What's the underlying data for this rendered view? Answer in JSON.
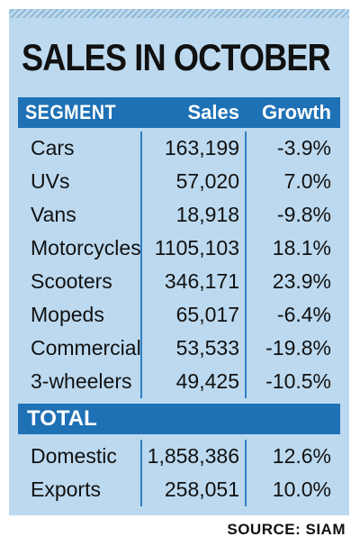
{
  "title": "SALES IN OCTOBER",
  "headers": {
    "segment": "SEGMENT",
    "sales": "Sales",
    "growth": "Growth"
  },
  "rows": [
    {
      "segment": "Cars",
      "sales": "163,199",
      "growth": "-3.9%"
    },
    {
      "segment": "UVs",
      "sales": "57,020",
      "growth": "7.0%"
    },
    {
      "segment": "Vans",
      "sales": "18,918",
      "growth": "-9.8%"
    },
    {
      "segment": "Motorcycles",
      "sales": "1105,103",
      "growth": "18.1%"
    },
    {
      "segment": "Scooters",
      "sales": "346,171",
      "growth": "23.9%"
    },
    {
      "segment": "Mopeds",
      "sales": "65,017",
      "growth": "-6.4%"
    },
    {
      "segment": "Commercial",
      "sales": "53,533",
      "growth": "-19.8%"
    },
    {
      "segment": "3-wheelers",
      "sales": "49,425",
      "growth": "-10.5%"
    }
  ],
  "total_label": "TOTAL",
  "total_rows": [
    {
      "segment": "Domestic",
      "sales": "1,858,386",
      "growth": "12.6%"
    },
    {
      "segment": "Exports",
      "sales": "258,051",
      "growth": "10.0%"
    }
  ],
  "source": "SOURCE: SIAM",
  "colors": {
    "panel": "#bcd9ef",
    "header": "#1f71b6",
    "divider": "#2f80c4"
  }
}
